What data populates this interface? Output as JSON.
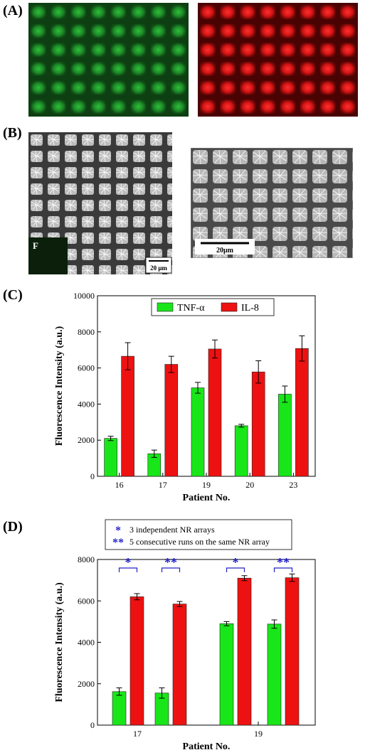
{
  "panels": {
    "a": {
      "label": "(A)"
    },
    "b": {
      "label": "(B)",
      "inset_label": "F",
      "scale_left": "20 μm",
      "scale_right": "20μm"
    },
    "c": {
      "label": "(C)"
    },
    "d": {
      "label": "(D)"
    }
  },
  "colors": {
    "green": "#19e619",
    "red": "#ee1111",
    "star": "#2323c8"
  },
  "chart_data": [
    {
      "type": "bar",
      "panel": "(C)",
      "categories": [
        "16",
        "17",
        "19",
        "20",
        "23"
      ],
      "series": [
        {
          "name": "TNF-α",
          "values": [
            2100,
            1250,
            4900,
            2800,
            4550
          ],
          "errors": [
            120,
            200,
            300,
            80,
            450
          ]
        },
        {
          "name": "IL-8",
          "values": [
            6650,
            6200,
            7050,
            5780,
            7080
          ],
          "errors": [
            750,
            450,
            500,
            620,
            700
          ]
        }
      ],
      "xlabel": "Patient No.",
      "ylabel": "Fluorescence Intensity (a.u.)",
      "ylim": [
        0,
        10000
      ],
      "yticks": [
        "0",
        "2000",
        "4000",
        "6000",
        "8000",
        "10000"
      ],
      "legend": "top-center"
    },
    {
      "type": "bar",
      "panel": "(D)",
      "categories": [
        "17",
        "19"
      ],
      "groups": [
        {
          "patient": "17",
          "marker": "*",
          "tnf": 1620,
          "tnf_err": 180,
          "il8": 6200,
          "il8_err": 150
        },
        {
          "patient": "17",
          "marker": "**",
          "tnf": 1550,
          "tnf_err": 250,
          "il8": 5850,
          "il8_err": 120
        },
        {
          "patient": "19",
          "marker": "*",
          "tnf": 4900,
          "tnf_err": 100,
          "il8": 7100,
          "il8_err": 120
        },
        {
          "patient": "19",
          "marker": "**",
          "tnf": 4880,
          "tnf_err": 200,
          "il8": 7120,
          "il8_err": 180
        }
      ],
      "legend_items": [
        {
          "symbol": "*",
          "text": "3 independent NR arrays"
        },
        {
          "symbol": "**",
          "text": "5 consecutive runs on the same NR array"
        }
      ],
      "xlabel": "Patient No.",
      "ylabel": "Fluorescence Intensity (a.u.)",
      "ylim": [
        0,
        8000
      ],
      "yticks": [
        "0",
        "2000",
        "4000",
        "6000",
        "8000"
      ]
    }
  ]
}
